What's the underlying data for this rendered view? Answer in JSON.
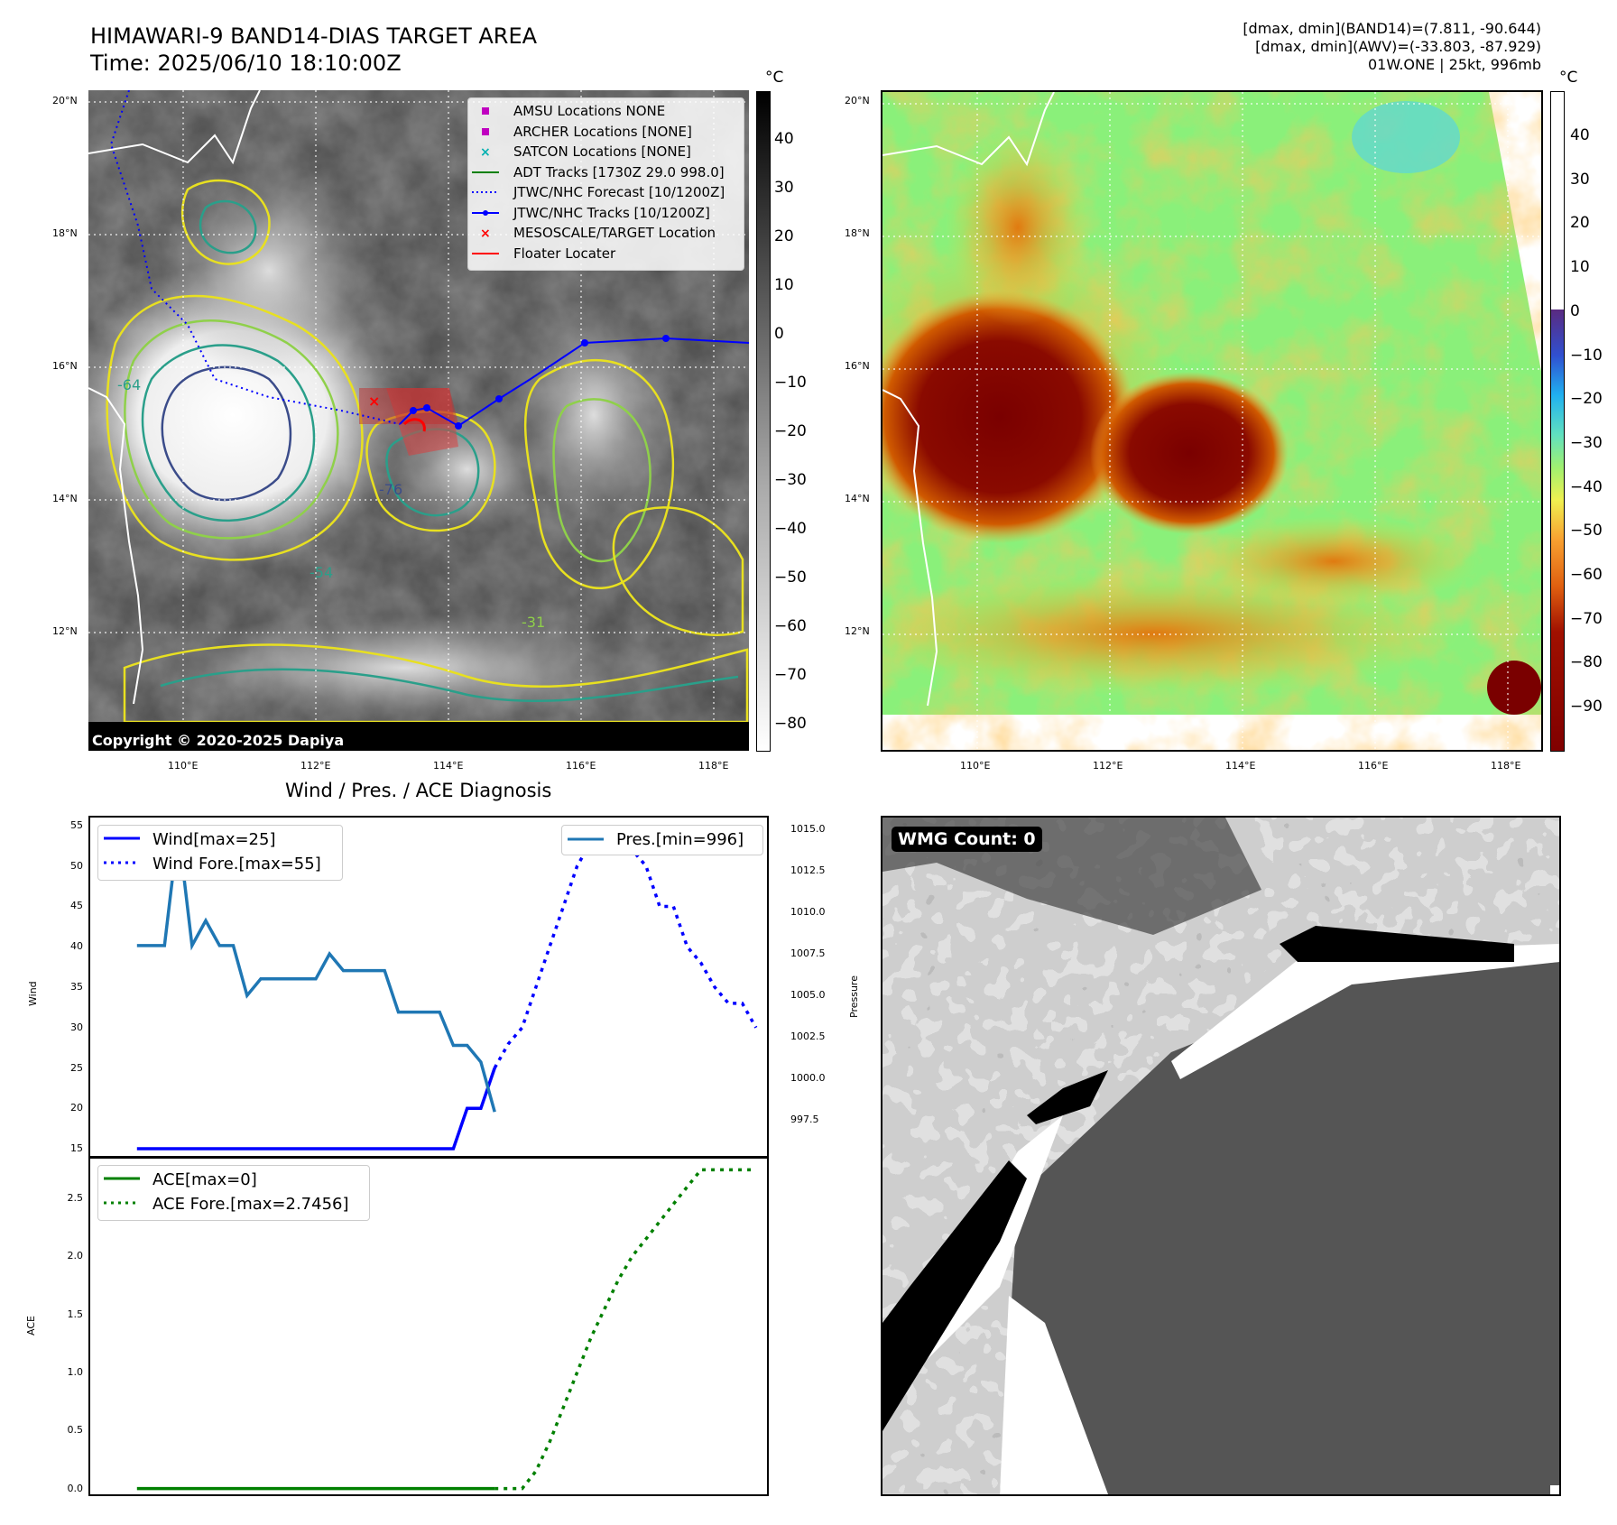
{
  "header": {
    "title_line1": "HIMAWARI-9 BAND14-DIAS TARGET AREA",
    "title_line2": "Time: 2025/06/10 18:10:00Z",
    "info_line1": "[dmax, dmin](BAND14)=(7.811, -90.644)",
    "info_line2": "[dmax, dmin](AWV)=(-33.803, -87.929)",
    "info_line3": "01W.ONE | 25kt, 996mb"
  },
  "map_axes": {
    "lat_labels": [
      "20°N",
      "18°N",
      "16°N",
      "14°N",
      "12°N"
    ],
    "lon_labels": [
      "110°E",
      "112°E",
      "114°E",
      "116°E",
      "118°E"
    ]
  },
  "ir_panel": {
    "colorbar_unit": "°C",
    "colorbar_ticks": [
      "40",
      "30",
      "20",
      "10",
      "0",
      "−10",
      "−20",
      "−30",
      "−40",
      "−50",
      "−60",
      "−70",
      "−80"
    ],
    "copyright": "Copyright © 2020-2025 Dapiya",
    "contour_labels": [
      "-64",
      "-76",
      "-54",
      "-31"
    ],
    "legend": [
      {
        "label": "AMSU Locations NONE",
        "color": "#c000c0",
        "marker": "square"
      },
      {
        "label": "ARCHER Locations [NONE]",
        "color": "#c000c0",
        "marker": "square"
      },
      {
        "label": "SATCON Locations [NONE]",
        "color": "#00b0b0",
        "marker": "x"
      },
      {
        "label": "ADT Tracks [1730Z 29.0 998.0]",
        "color": "#008000",
        "marker": "line"
      },
      {
        "label": "JTWC/NHC Forecast [10/1200Z]",
        "color": "#0000ff",
        "marker": "dotted"
      },
      {
        "label": "JTWC/NHC Tracks [10/1200Z]",
        "color": "#0000ff",
        "marker": "line-dot"
      },
      {
        "label": "MESOSCALE/TARGET Location",
        "color": "#ff0000",
        "marker": "x"
      },
      {
        "label": "Floater Locater",
        "color": "#ff0000",
        "marker": "line"
      }
    ]
  },
  "awv_panel": {
    "colorbar_unit": "°C",
    "colorbar_ticks": [
      "40",
      "30",
      "20",
      "10",
      "0",
      "−10",
      "−20",
      "−30",
      "−40",
      "−50",
      "−60",
      "−70",
      "−80",
      "−90"
    ]
  },
  "diagnosis": {
    "title": "Wind / Pres. / ACE Diagnosis",
    "wind_ylabel": "Wind",
    "pres_ylabel": "Pressure",
    "ace_ylabel": "ACE",
    "wind_ticks": [
      "55",
      "50",
      "45",
      "40",
      "35",
      "30",
      "25",
      "20",
      "15"
    ],
    "pres_ticks": [
      "1015.0",
      "1012.5",
      "1010.0",
      "1007.5",
      "1005.0",
      "1002.5",
      "1000.0",
      "997.5"
    ],
    "ace_ticks": [
      "2.5",
      "2.0",
      "1.5",
      "1.0",
      "0.5",
      "0.0"
    ],
    "legend_wind": "Wind[max=25]",
    "legend_wind_fore": "Wind Fore.[max=55]",
    "legend_pres": "Pres.[min=996]",
    "legend_ace": "ACE[max=0]",
    "legend_ace_fore": "ACE Fore.[max=2.7456]"
  },
  "wmg_panel": {
    "label": "WMG Count: 0"
  },
  "chart_data": [
    {
      "type": "line",
      "title": "Wind / Pres. / ACE Diagnosis",
      "ylabel": "Wind",
      "ylim": [
        14,
        56
      ],
      "series": [
        {
          "name": "Wind[max=25]",
          "color": "#0000ff",
          "style": "solid",
          "x": [
            0,
            1,
            2,
            3,
            4,
            5,
            6,
            7,
            8,
            9,
            10,
            11,
            12,
            13,
            14,
            15,
            16,
            17,
            18,
            19,
            20,
            21,
            22,
            23,
            24,
            25,
            26
          ],
          "y": [
            15,
            15,
            15,
            15,
            15,
            15,
            15,
            15,
            15,
            15,
            15,
            15,
            15,
            15,
            15,
            15,
            15,
            15,
            15,
            15,
            15,
            15,
            15,
            15,
            20,
            20,
            25
          ]
        },
        {
          "name": "Wind Fore.[max=55]",
          "color": "#0000ff",
          "style": "dotted",
          "x": [
            26,
            27,
            28,
            29,
            30,
            31,
            32,
            33,
            34,
            35,
            36,
            37,
            38,
            39,
            40,
            41,
            42,
            43,
            44,
            45
          ],
          "y": [
            25,
            28,
            30,
            35,
            40,
            45,
            50,
            53,
            55,
            52,
            52,
            50,
            45,
            45,
            40,
            38,
            35,
            33,
            33,
            30
          ]
        }
      ]
    },
    {
      "type": "line",
      "ylabel": "Pressure",
      "ylim": [
        995.3,
        1015.7
      ],
      "series": [
        {
          "name": "Pres.[min=996]",
          "color": "#1f77b4",
          "style": "solid",
          "x": [
            0,
            1,
            2,
            3,
            4,
            5,
            6,
            7,
            8,
            9,
            10,
            11,
            12,
            13,
            14,
            15,
            16,
            17,
            18,
            19,
            20,
            21,
            22,
            23,
            24,
            25,
            26
          ],
          "y": [
            1008,
            1008,
            1008,
            1015,
            1008,
            1009.5,
            1008,
            1008,
            1005,
            1006,
            1006,
            1006,
            1006,
            1006,
            1007.5,
            1006.5,
            1006.5,
            1006.5,
            1006.5,
            1004,
            1004,
            1004,
            1004,
            1002,
            1002,
            1001,
            998
          ]
        }
      ]
    },
    {
      "type": "line",
      "ylabel": "ACE",
      "ylim": [
        -0.05,
        2.85
      ],
      "series": [
        {
          "name": "ACE[max=0]",
          "color": "#008000",
          "style": "solid",
          "x": [
            0,
            26
          ],
          "y": [
            0,
            0
          ]
        },
        {
          "name": "ACE Fore.[max=2.7456]",
          "color": "#008000",
          "style": "dotted",
          "x": [
            26,
            27,
            28,
            29,
            30,
            31,
            32,
            33,
            34,
            35,
            36,
            37,
            38,
            39,
            40,
            41,
            42,
            43,
            44,
            45
          ],
          "y": [
            0,
            0,
            0,
            0.15,
            0.4,
            0.7,
            1.0,
            1.3,
            1.55,
            1.8,
            2.0,
            2.15,
            2.3,
            2.45,
            2.6,
            2.7456,
            2.7456,
            2.7456,
            2.7456,
            2.7456
          ]
        }
      ]
    }
  ]
}
